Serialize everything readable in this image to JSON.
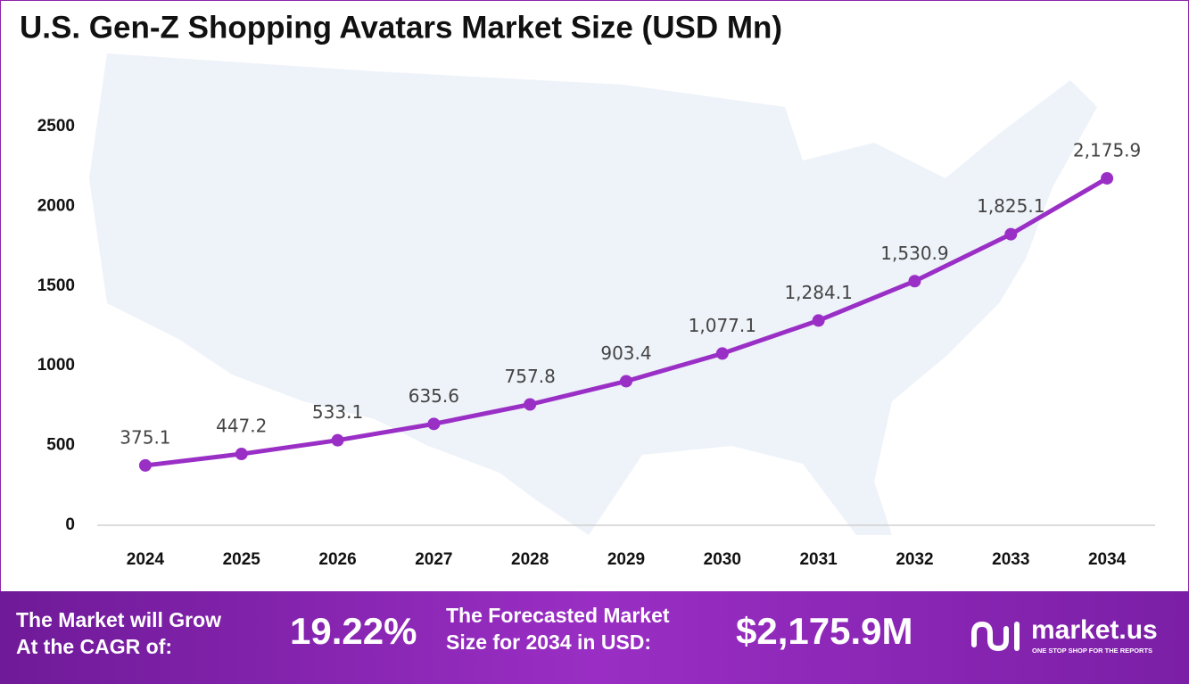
{
  "chart_data": {
    "type": "line",
    "title": "U.S. Gen-Z Shopping Avatars Market Size (USD Mn)",
    "categories": [
      "2024",
      "2025",
      "2026",
      "2027",
      "2028",
      "2029",
      "2030",
      "2031",
      "2032",
      "2033",
      "2034"
    ],
    "values": [
      375.1,
      447.2,
      533.1,
      635.6,
      757.8,
      903.4,
      1077.1,
      1284.1,
      1530.9,
      1825.1,
      2175.9
    ],
    "value_labels": [
      "375.1",
      "447.2",
      "533.1",
      "635.6",
      "757.8",
      "903.4",
      "1,077.1",
      "1,284.1",
      "1,530.9",
      "1,825.1",
      "2,175.9"
    ],
    "color": "#9a2fc6",
    "ylim": [
      0,
      2500
    ],
    "yticks": [
      0,
      500,
      1000,
      1500,
      2000,
      2500
    ],
    "grid": false
  },
  "footer": {
    "cagr_label": [
      "The Market will Grow",
      "At the CAGR of:"
    ],
    "cagr_value": "19.22%",
    "forecast_label": [
      "The Forecasted Market",
      "Size for 2034 in USD:"
    ],
    "forecast_value": "$2,175.9M",
    "brand": "market.us",
    "tagline": "ONE STOP SHOP FOR THE REPORTS"
  }
}
